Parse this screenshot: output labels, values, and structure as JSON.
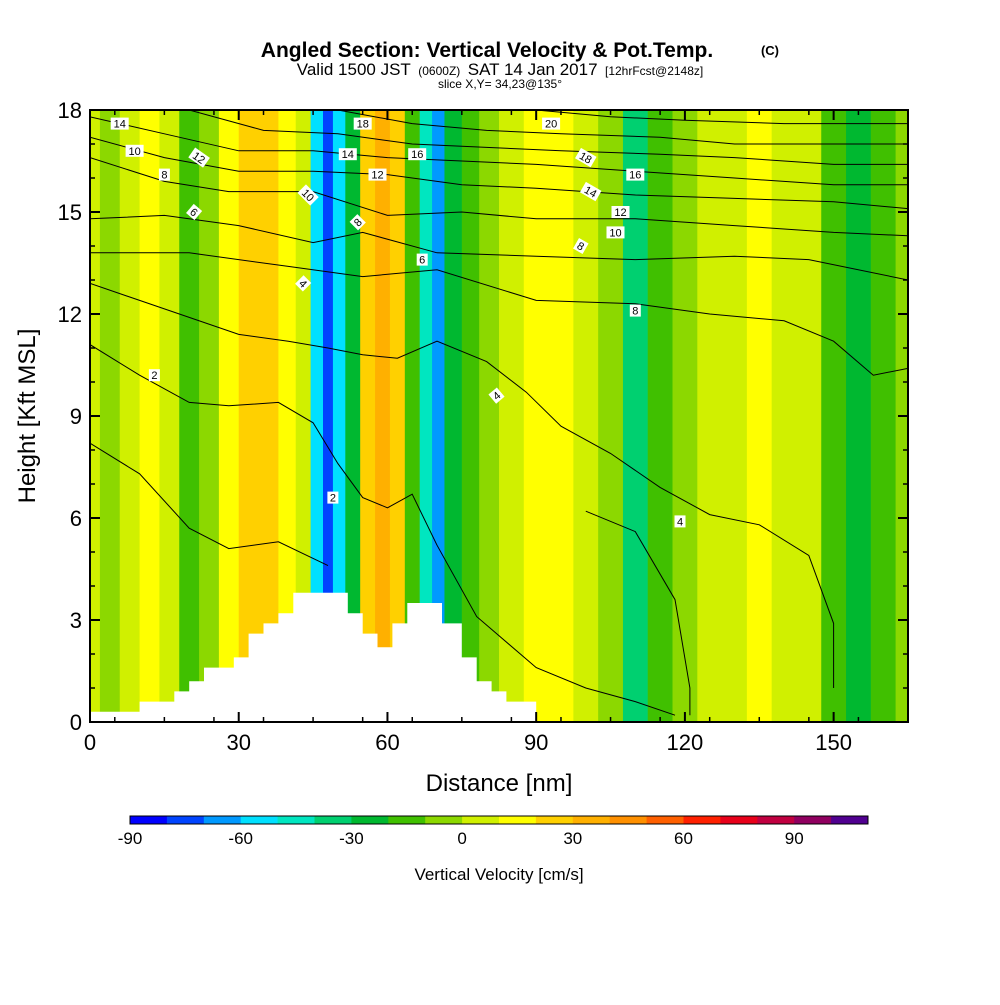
{
  "header": {
    "title": "Angled Section: Vertical Velocity & Pot.Temp.",
    "title_suffix": "(C)",
    "valid_prefix": "Valid 1500 JST",
    "valid_zulu": "(0600Z)",
    "valid_date": "SAT 14 Jan 2017",
    "valid_fcst": "[12hrFcst@2148z]",
    "slice": "slice X,Y= 34,23@135°"
  },
  "chart_data": {
    "type": "heatmap",
    "title": "Angled Section: Vertical Velocity & Pot.Temp.",
    "xlabel": "Distance [nm]",
    "ylabel": "Height [Kft MSL]",
    "xlim": [
      0,
      165
    ],
    "ylim": [
      0,
      18
    ],
    "x_ticks": [
      0,
      30,
      60,
      90,
      120,
      150
    ],
    "y_ticks": [
      0,
      3,
      6,
      9,
      12,
      15,
      18
    ],
    "grid": false,
    "colorbar": {
      "label": "Vertical Velocity [cm/s]",
      "min": -90,
      "max": 110,
      "step": 10,
      "tick_labels": [
        -90,
        -60,
        -30,
        0,
        30,
        60,
        90
      ],
      "colors": [
        "#0000ff",
        "#0044ff",
        "#0099ff",
        "#00e0ff",
        "#00e6c0",
        "#00d070",
        "#00b830",
        "#40c000",
        "#8cd800",
        "#d0f000",
        "#ffff00",
        "#ffd000",
        "#ffb000",
        "#ff9000",
        "#ff6000",
        "#ff2000",
        "#e8001a",
        "#c00040",
        "#900060",
        "#500090"
      ]
    },
    "velocity_columns": [
      {
        "x": 0,
        "v": 5
      },
      {
        "x": 4,
        "v": -10
      },
      {
        "x": 8,
        "v": 8
      },
      {
        "x": 12,
        "v": 10
      },
      {
        "x": 16,
        "v": 5
      },
      {
        "x": 20,
        "v": -15
      },
      {
        "x": 24,
        "v": -5
      },
      {
        "x": 28,
        "v": 15
      },
      {
        "x": 32,
        "v": 20
      },
      {
        "x": 36,
        "v": 25
      },
      {
        "x": 40,
        "v": 15
      },
      {
        "x": 43,
        "v": 5
      },
      {
        "x": 46,
        "v": -60
      },
      {
        "x": 48,
        "v": -80
      },
      {
        "x": 50,
        "v": -55
      },
      {
        "x": 53,
        "v": -30
      },
      {
        "x": 56,
        "v": 20
      },
      {
        "x": 59,
        "v": 35
      },
      {
        "x": 62,
        "v": 20
      },
      {
        "x": 65,
        "v": -20
      },
      {
        "x": 68,
        "v": -50
      },
      {
        "x": 70,
        "v": -65
      },
      {
        "x": 73,
        "v": -25
      },
      {
        "x": 77,
        "v": -15
      },
      {
        "x": 80,
        "v": -5
      },
      {
        "x": 85,
        "v": 5
      },
      {
        "x": 90,
        "v": 10
      },
      {
        "x": 95,
        "v": 10
      },
      {
        "x": 100,
        "v": 5
      },
      {
        "x": 105,
        "v": -10
      },
      {
        "x": 110,
        "v": -35
      },
      {
        "x": 115,
        "v": -20
      },
      {
        "x": 120,
        "v": -5
      },
      {
        "x": 125,
        "v": 3
      },
      {
        "x": 130,
        "v": 6
      },
      {
        "x": 135,
        "v": 10
      },
      {
        "x": 140,
        "v": 5
      },
      {
        "x": 145,
        "v": 0
      },
      {
        "x": 150,
        "v": -15
      },
      {
        "x": 155,
        "v": -30
      },
      {
        "x": 160,
        "v": -20
      },
      {
        "x": 165,
        "v": -5
      }
    ],
    "terrain": [
      [
        0,
        0.3
      ],
      [
        10,
        0.3
      ],
      [
        10,
        0.6
      ],
      [
        17,
        0.6
      ],
      [
        17,
        0.9
      ],
      [
        20,
        0.9
      ],
      [
        20,
        1.2
      ],
      [
        23,
        1.2
      ],
      [
        23,
        1.6
      ],
      [
        29,
        1.6
      ],
      [
        29,
        1.9
      ],
      [
        32,
        1.9
      ],
      [
        32,
        2.6
      ],
      [
        35,
        2.6
      ],
      [
        35,
        2.9
      ],
      [
        38,
        2.9
      ],
      [
        38,
        3.2
      ],
      [
        41,
        3.2
      ],
      [
        41,
        3.8
      ],
      [
        52,
        3.8
      ],
      [
        52,
        3.2
      ],
      [
        55,
        3.2
      ],
      [
        55,
        2.6
      ],
      [
        58,
        2.6
      ],
      [
        58,
        2.2
      ],
      [
        61,
        2.2
      ],
      [
        61,
        2.9
      ],
      [
        64,
        2.9
      ],
      [
        64,
        3.5
      ],
      [
        71,
        3.5
      ],
      [
        71,
        2.9
      ],
      [
        75,
        2.9
      ],
      [
        75,
        1.9
      ],
      [
        78,
        1.9
      ],
      [
        78,
        1.2
      ],
      [
        81,
        1.2
      ],
      [
        81,
        0.9
      ],
      [
        84,
        0.9
      ],
      [
        84,
        0.6
      ],
      [
        90,
        0.6
      ],
      [
        90,
        0
      ],
      [
        0,
        0
      ]
    ],
    "theta_contours": [
      {
        "value": 2,
        "points": [
          [
            0,
            11.1
          ],
          [
            10,
            10.2
          ],
          [
            20,
            9.4
          ],
          [
            28,
            9.3
          ],
          [
            38,
            9.4
          ],
          [
            45,
            8.8
          ],
          [
            50,
            7.6
          ],
          [
            55,
            6.6
          ],
          [
            60,
            6.3
          ],
          [
            65,
            6.7
          ],
          [
            70,
            5.2
          ],
          [
            78,
            3.1
          ],
          [
            90,
            1.6
          ],
          [
            100,
            1.0
          ],
          [
            110,
            0.6
          ],
          [
            118,
            0.2
          ]
        ]
      },
      {
        "value": 2,
        "points": [
          [
            0,
            8.2
          ],
          [
            10,
            7.3
          ],
          [
            20,
            5.7
          ],
          [
            28,
            5.1
          ],
          [
            38,
            5.3
          ],
          [
            48,
            4.6
          ]
        ]
      },
      {
        "value": 4,
        "points": [
          [
            0,
            12.9
          ],
          [
            10,
            12.4
          ],
          [
            20,
            11.9
          ],
          [
            30,
            11.4
          ],
          [
            40,
            11.2
          ],
          [
            48,
            11.0
          ],
          [
            55,
            10.8
          ],
          [
            62,
            10.7
          ],
          [
            70,
            11.2
          ],
          [
            80,
            10.6
          ],
          [
            88,
            9.7
          ],
          [
            95,
            8.7
          ],
          [
            105,
            7.9
          ],
          [
            115,
            6.9
          ],
          [
            125,
            6.1
          ],
          [
            135,
            5.8
          ],
          [
            145,
            4.9
          ],
          [
            150,
            2.9
          ],
          [
            150,
            1.0
          ]
        ]
      },
      {
        "value": 4,
        "points": [
          [
            100,
            6.2
          ],
          [
            110,
            5.6
          ],
          [
            118,
            3.6
          ],
          [
            121,
            1.0
          ],
          [
            121,
            0.2
          ]
        ]
      },
      {
        "value": 6,
        "points": [
          [
            0,
            13.8
          ],
          [
            20,
            13.8
          ],
          [
            40,
            13.4
          ],
          [
            55,
            13.1
          ],
          [
            70,
            13.3
          ],
          [
            90,
            12.4
          ],
          [
            110,
            12.3
          ],
          [
            125,
            12.0
          ],
          [
            140,
            11.8
          ],
          [
            150,
            11.2
          ],
          [
            158,
            10.2
          ],
          [
            165,
            10.4
          ]
        ]
      },
      {
        "value": 8,
        "points": [
          [
            0,
            14.8
          ],
          [
            15,
            14.9
          ],
          [
            30,
            14.6
          ],
          [
            45,
            14.1
          ],
          [
            55,
            14.4
          ],
          [
            70,
            13.8
          ],
          [
            90,
            13.7
          ],
          [
            110,
            13.6
          ],
          [
            130,
            13.7
          ],
          [
            145,
            13.6
          ],
          [
            165,
            13.0
          ]
        ]
      },
      {
        "value": 10,
        "points": [
          [
            0,
            16.6
          ],
          [
            15,
            15.9
          ],
          [
            28,
            15.6
          ],
          [
            45,
            15.6
          ],
          [
            60,
            14.9
          ],
          [
            75,
            15.0
          ],
          [
            90,
            14.8
          ],
          [
            110,
            14.8
          ],
          [
            130,
            14.6
          ],
          [
            150,
            14.4
          ],
          [
            165,
            14.3
          ]
        ]
      },
      {
        "value": 12,
        "points": [
          [
            0,
            17.2
          ],
          [
            15,
            16.6
          ],
          [
            30,
            16.2
          ],
          [
            45,
            16.2
          ],
          [
            60,
            16.1
          ],
          [
            75,
            15.8
          ],
          [
            90,
            15.7
          ],
          [
            110,
            15.5
          ],
          [
            130,
            15.4
          ],
          [
            150,
            15.3
          ],
          [
            165,
            15.1
          ]
        ]
      },
      {
        "value": 14,
        "points": [
          [
            0,
            17.8
          ],
          [
            15,
            17.3
          ],
          [
            30,
            16.8
          ],
          [
            45,
            16.8
          ],
          [
            60,
            16.6
          ],
          [
            75,
            16.5
          ],
          [
            90,
            16.4
          ],
          [
            110,
            16.2
          ],
          [
            130,
            16.0
          ],
          [
            150,
            15.8
          ],
          [
            165,
            15.8
          ]
        ]
      },
      {
        "value": 16,
        "points": [
          [
            20,
            18.0
          ],
          [
            35,
            17.4
          ],
          [
            50,
            17.3
          ],
          [
            65,
            17.0
          ],
          [
            80,
            16.9
          ],
          [
            95,
            16.8
          ],
          [
            115,
            16.7
          ],
          [
            130,
            16.6
          ],
          [
            150,
            16.4
          ],
          [
            165,
            16.4
          ]
        ]
      },
      {
        "value": 18,
        "points": [
          [
            50,
            18.0
          ],
          [
            65,
            17.6
          ],
          [
            80,
            17.4
          ],
          [
            95,
            17.3
          ],
          [
            115,
            17.2
          ],
          [
            130,
            17.0
          ],
          [
            150,
            17.0
          ],
          [
            165,
            17.0
          ]
        ]
      },
      {
        "value": 20,
        "points": [
          [
            90,
            18.0
          ],
          [
            105,
            17.8
          ],
          [
            120,
            17.7
          ],
          [
            140,
            17.6
          ],
          [
            165,
            17.6
          ]
        ]
      }
    ],
    "contour_labels": [
      {
        "text": "14",
        "x": 6,
        "y": 17.6,
        "angle": 0
      },
      {
        "text": "12",
        "x": 22,
        "y": 16.6,
        "angle": 35
      },
      {
        "text": "10",
        "x": 9,
        "y": 16.8,
        "angle": 0
      },
      {
        "text": "8",
        "x": 15,
        "y": 16.1,
        "angle": 0
      },
      {
        "text": "6",
        "x": 21,
        "y": 15.0,
        "angle": 40
      },
      {
        "text": "10",
        "x": 44,
        "y": 15.5,
        "angle": 45
      },
      {
        "text": "8",
        "x": 54,
        "y": 14.7,
        "angle": -45
      },
      {
        "text": "4",
        "x": 43,
        "y": 12.9,
        "angle": 45
      },
      {
        "text": "18",
        "x": 55,
        "y": 17.6,
        "angle": 0
      },
      {
        "text": "14",
        "x": 52,
        "y": 16.7,
        "angle": 0
      },
      {
        "text": "16",
        "x": 66,
        "y": 16.7,
        "angle": 0
      },
      {
        "text": "12",
        "x": 58,
        "y": 16.1,
        "angle": 0
      },
      {
        "text": "6",
        "x": 67,
        "y": 13.6,
        "angle": 0
      },
      {
        "text": "2",
        "x": 13,
        "y": 10.2,
        "angle": 0
      },
      {
        "text": "4",
        "x": 82,
        "y": 9.6,
        "angle": -40
      },
      {
        "text": "2",
        "x": 49,
        "y": 6.6,
        "angle": 0
      },
      {
        "text": "20",
        "x": 93,
        "y": 17.6,
        "angle": 0
      },
      {
        "text": "18",
        "x": 100,
        "y": 16.6,
        "angle": 30
      },
      {
        "text": "14",
        "x": 101,
        "y": 15.6,
        "angle": 30
      },
      {
        "text": "16",
        "x": 110,
        "y": 16.1,
        "angle": 0
      },
      {
        "text": "12",
        "x": 107,
        "y": 15.0,
        "angle": 0
      },
      {
        "text": "10",
        "x": 106,
        "y": 14.4,
        "angle": 0
      },
      {
        "text": "8",
        "x": 99,
        "y": 14.0,
        "angle": 30
      },
      {
        "text": "8",
        "x": 110,
        "y": 12.1,
        "angle": 0
      },
      {
        "text": "4",
        "x": 119,
        "y": 5.9,
        "angle": 0
      }
    ]
  }
}
